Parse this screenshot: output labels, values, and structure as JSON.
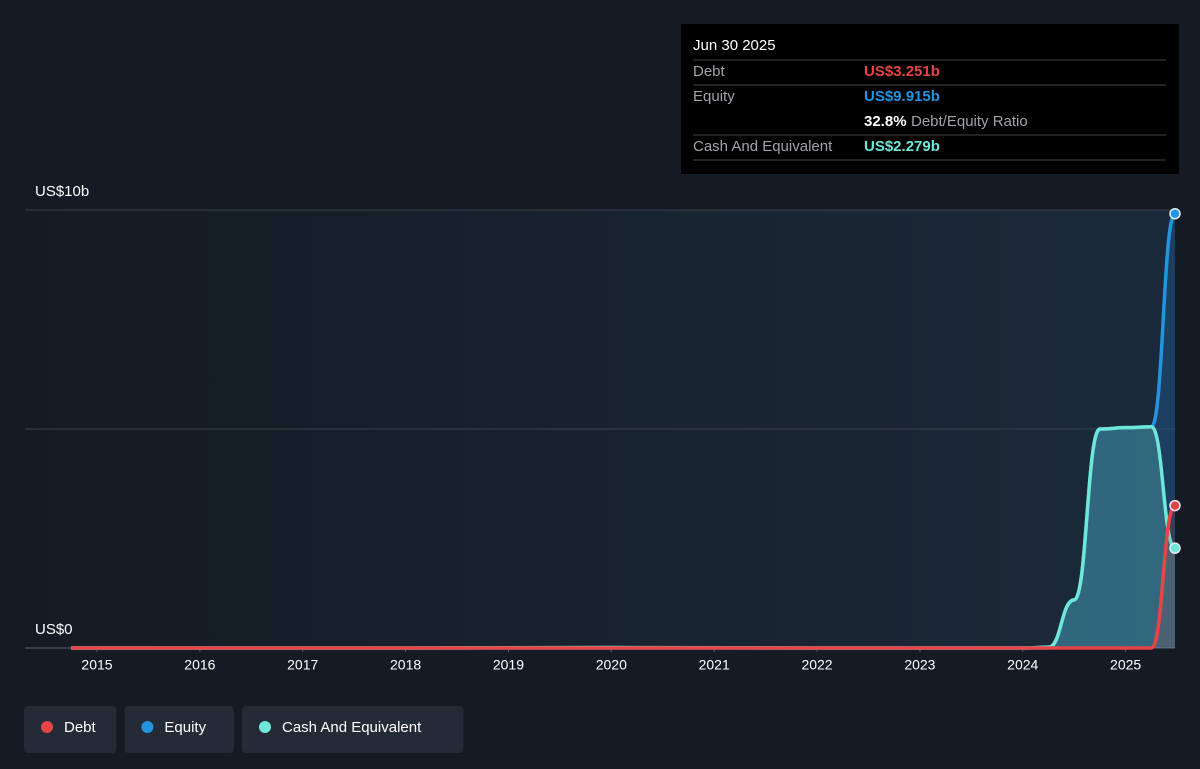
{
  "chart_data": {
    "type": "area",
    "x": [
      2014.75,
      2016,
      2018,
      2020,
      2022,
      2024,
      2024.25,
      2024.5,
      2024.75,
      2025.0,
      2025.25,
      2025.48
    ],
    "xlim": [
      2014.3,
      2025.48
    ],
    "xticks": [
      2015,
      2016,
      2017,
      2018,
      2019,
      2020,
      2021,
      2022,
      2023,
      2024,
      2025
    ],
    "ylim": [
      0,
      10
    ],
    "yticks": [
      {
        "value": 0,
        "label": "US$0"
      },
      {
        "value": 5,
        "label": null
      },
      {
        "value": 10,
        "label": "US$10b"
      }
    ],
    "grid": true,
    "series": [
      {
        "name": "Debt",
        "color": "#e64545",
        "values": [
          0,
          0,
          0,
          0,
          0,
          0,
          0,
          0,
          0,
          0,
          0,
          3.251
        ]
      },
      {
        "name": "Equity",
        "color": "#2394df",
        "values": [
          0,
          0,
          0,
          0,
          0,
          0,
          0,
          1.1,
          5.0,
          5.03,
          5.05,
          9.915
        ]
      },
      {
        "name": "Cash And Equivalent",
        "color": "#6ee7d8",
        "values": [
          0,
          0,
          0,
          0.01,
          0,
          0,
          0.02,
          1.1,
          5.0,
          5.03,
          5.05,
          2.279
        ]
      }
    ],
    "tooltip": {
      "date": "Jun 30 2025",
      "rows": [
        {
          "label": "Debt",
          "value": "US$3.251b"
        },
        {
          "label": "Equity",
          "value": "US$9.915b"
        },
        {
          "label": "Cash And Equivalent",
          "value": "US$2.279b"
        }
      ],
      "ratio": "32.8%",
      "ratio_label": "Debt/Equity Ratio"
    }
  }
}
